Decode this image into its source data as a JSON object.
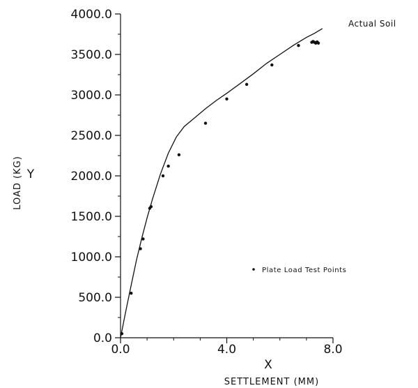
{
  "chart_data": {
    "type": "scatter",
    "xlabel": "SETTLEMENT (MM)",
    "ylabel": "LOAD (KG)",
    "x_axis_letter": "X",
    "y_axis_letter": "Y",
    "xlim": [
      0,
      8
    ],
    "ylim": [
      0,
      4000
    ],
    "x_ticks": [
      0,
      4,
      8
    ],
    "x_tick_labels": [
      "0.0",
      "4.0",
      "8.0"
    ],
    "y_ticks": [
      0,
      500,
      1000,
      1500,
      2000,
      2500,
      3000,
      3500,
      4000
    ],
    "y_tick_labels": [
      "0.0",
      "500.0",
      "1000.0",
      "1500.0",
      "2000.0",
      "2500.0",
      "3000.0",
      "3500.0",
      "4000.0"
    ],
    "grid": false,
    "series": [
      {
        "name": "Actual Soil",
        "kind": "line",
        "x": [
          0,
          0.2,
          0.4,
          0.6,
          0.8,
          1.0,
          1.2,
          1.5,
          1.8,
          2.1,
          2.4,
          2.8,
          3.2,
          3.6,
          4.0,
          4.5,
          5.0,
          5.5,
          6.0,
          6.5,
          7.0,
          7.3,
          7.6
        ],
        "y": [
          0,
          330,
          650,
          960,
          1230,
          1480,
          1710,
          2020,
          2280,
          2480,
          2610,
          2720,
          2830,
          2930,
          3020,
          3140,
          3260,
          3390,
          3500,
          3610,
          3710,
          3760,
          3820
        ]
      },
      {
        "name": "Plate Load Test Points",
        "kind": "points",
        "x": [
          0.05,
          0.4,
          0.75,
          0.85,
          1.1,
          1.15,
          1.6,
          1.8,
          2.2,
          3.2,
          4.0,
          4.75,
          5.7,
          6.7,
          7.2,
          7.25,
          7.3,
          7.35,
          7.4,
          7.45
        ],
        "y": [
          50,
          550,
          1100,
          1220,
          1600,
          1620,
          2000,
          2120,
          2260,
          2650,
          2950,
          3130,
          3370,
          3610,
          3650,
          3660,
          3650,
          3640,
          3655,
          3640
        ]
      }
    ],
    "annotation": "Actual Soil",
    "legend_label": "Plate Load Test Points"
  }
}
